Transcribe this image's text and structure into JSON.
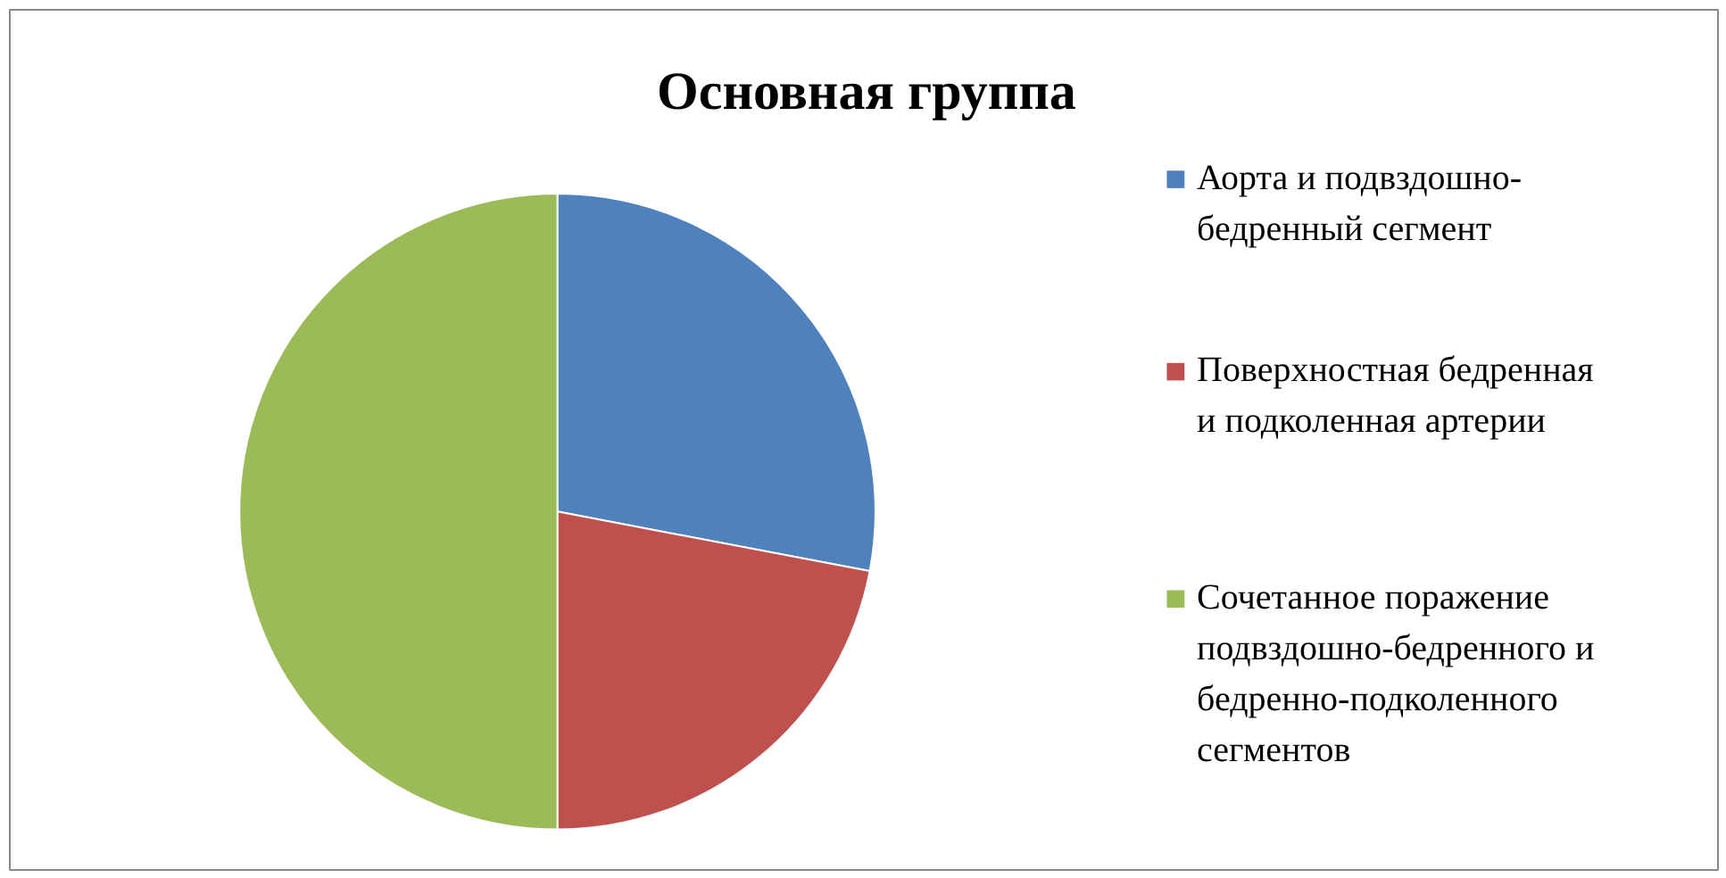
{
  "chart_data": {
    "type": "pie",
    "title": "Основная группа",
    "categories": [
      "Аорта и подвздошно-бедренный сегмент",
      "Поверхностная бедренная и подколенная артерии",
      "Сочетанное поражение подвздошно-бедренного и бедренно-подколенного сегментов"
    ],
    "values": [
      28,
      22,
      50
    ],
    "colors": [
      "#4f81bd",
      "#c0504d",
      "#9bbb59"
    ],
    "legend": "right"
  }
}
